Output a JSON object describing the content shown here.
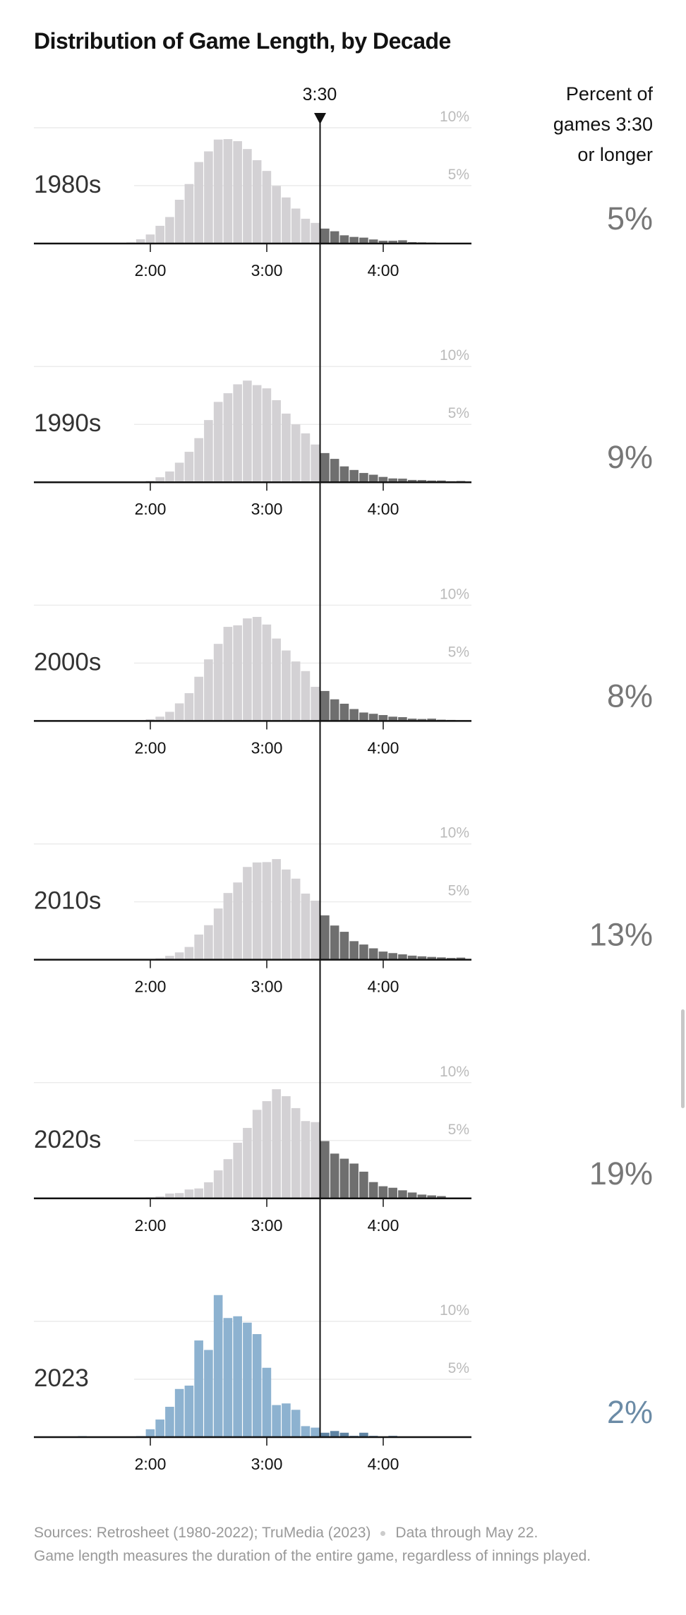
{
  "title": "Distribution of Game Length, by Decade",
  "marker_label": "3:30",
  "right_header": [
    "Percent of",
    "games 3:30",
    "or longer"
  ],
  "footer": {
    "sources": "Sources: Retrosheet (1980-2022); TruMedia (2023)",
    "through": "Data through May 22.",
    "note": "Game length measures the duration of the entire game, regardless of innings played."
  },
  "colors": {
    "under": "#d3d1d4",
    "over": "#6f6f6f",
    "under_2023": "#8db2d0",
    "over_2023": "#5f84a3",
    "percent_text": "#777777",
    "percent_text_2023": "#6b8ba6"
  },
  "chart_data": {
    "type": "bar",
    "title": "Distribution of Game Length, by Decade",
    "x_unit": "game length (h:mm), 5-minute bins",
    "x_ticks": [
      "2:00",
      "3:00",
      "4:00"
    ],
    "y_ticks": [
      "5%",
      "10%"
    ],
    "ylim": [
      0,
      12.5
    ],
    "threshold": "3:30",
    "bin_starts": [
      "1:05",
      "1:10",
      "1:15",
      "1:20",
      "1:25",
      "1:30",
      "1:35",
      "1:40",
      "1:45",
      "1:50",
      "1:55",
      "2:00",
      "2:05",
      "2:10",
      "2:15",
      "2:20",
      "2:25",
      "2:30",
      "2:35",
      "2:40",
      "2:45",
      "2:50",
      "2:55",
      "3:00",
      "3:05",
      "3:10",
      "3:15",
      "3:20",
      "3:25",
      "3:30",
      "3:35",
      "3:40",
      "3:45",
      "3:50",
      "3:55",
      "4:00",
      "4:05",
      "4:10",
      "4:15",
      "4:20",
      "4:25",
      "4:30",
      "4:35",
      "4:40"
    ],
    "panels": [
      {
        "label": "1980s",
        "percent_over": "5%",
        "values": [
          0.02,
          0.02,
          0.02,
          0.02,
          0.02,
          0.02,
          0.02,
          0.03,
          0.05,
          0.1,
          0.37,
          0.78,
          1.53,
          2.29,
          3.78,
          5.14,
          7.04,
          7.96,
          8.98,
          9.02,
          8.84,
          8.16,
          7.2,
          6.27,
          4.98,
          3.98,
          3.02,
          2.14,
          1.78,
          1.29,
          1.06,
          0.71,
          0.57,
          0.51,
          0.35,
          0.24,
          0.24,
          0.28,
          0.12,
          0.1,
          0.08,
          0.06,
          0.06,
          0.05
        ]
      },
      {
        "label": "1990s",
        "percent_over": "9%",
        "values": [
          0.02,
          0.02,
          0.02,
          0.02,
          0.02,
          0.02,
          0.02,
          0.02,
          0.03,
          0.05,
          0.05,
          0.13,
          0.43,
          0.93,
          1.69,
          2.63,
          3.81,
          5.37,
          6.94,
          7.69,
          8.46,
          8.78,
          8.39,
          8.11,
          7.09,
          5.93,
          5.0,
          4.22,
          3.26,
          2.52,
          2.02,
          1.37,
          1.06,
          0.8,
          0.65,
          0.46,
          0.33,
          0.31,
          0.2,
          0.19,
          0.15,
          0.15,
          0.09,
          0.11
        ]
      },
      {
        "label": "2000s",
        "percent_over": "8%",
        "values": [
          0.02,
          0.02,
          0.02,
          0.02,
          0.02,
          0.02,
          0.02,
          0.02,
          0.02,
          0.03,
          0.05,
          0.15,
          0.37,
          0.79,
          1.52,
          2.4,
          3.82,
          5.32,
          6.66,
          8.13,
          8.26,
          8.86,
          8.99,
          8.33,
          7.12,
          6.09,
          5.14,
          4.31,
          2.95,
          2.59,
          1.87,
          1.49,
          1.03,
          0.73,
          0.62,
          0.51,
          0.37,
          0.33,
          0.2,
          0.17,
          0.2,
          0.11,
          0.09,
          0.06
        ]
      },
      {
        "label": "2010s",
        "percent_over": "13%",
        "values": [
          0.02,
          0.02,
          0.02,
          0.02,
          0.02,
          0.02,
          0.02,
          0.02,
          0.02,
          0.03,
          0.04,
          0.05,
          0.11,
          0.33,
          0.63,
          1.1,
          2.17,
          2.98,
          4.42,
          5.76,
          6.67,
          8.01,
          8.4,
          8.43,
          8.69,
          7.79,
          7.0,
          5.71,
          5.1,
          3.83,
          2.95,
          2.41,
          1.6,
          1.31,
          0.98,
          0.7,
          0.57,
          0.46,
          0.35,
          0.29,
          0.24,
          0.2,
          0.15,
          0.18
        ]
      },
      {
        "label": "2020s",
        "percent_over": "19%",
        "values": [
          0.03,
          0.03,
          0.03,
          0.03,
          0.03,
          0.03,
          0.03,
          0.03,
          0.03,
          0.04,
          0.05,
          0.09,
          0.17,
          0.42,
          0.46,
          0.77,
          0.86,
          1.39,
          2.42,
          3.39,
          4.81,
          6.09,
          7.65,
          8.4,
          9.43,
          8.83,
          7.8,
          6.68,
          6.59,
          4.95,
          3.87,
          3.43,
          3.01,
          2.31,
          1.41,
          1.05,
          0.92,
          0.7,
          0.51,
          0.33,
          0.26,
          0.2,
          0.07,
          0.04
        ]
      },
      {
        "label": "2023",
        "percent_over": "2%",
        "highlight": true,
        "values": [
          0,
          0,
          0,
          0,
          0.09,
          0,
          0,
          0,
          0,
          0,
          0.09,
          0.68,
          1.52,
          2.62,
          4.16,
          4.45,
          8.35,
          7.53,
          12.27,
          10.29,
          10.44,
          9.89,
          8.9,
          5.99,
          2.77,
          2.91,
          2.36,
          0.95,
          0.82,
          0.38,
          0.53,
          0.38,
          0.11,
          0.38,
          0.11,
          0,
          0.11,
          0,
          0,
          0,
          0,
          0,
          0,
          0
        ]
      }
    ]
  }
}
